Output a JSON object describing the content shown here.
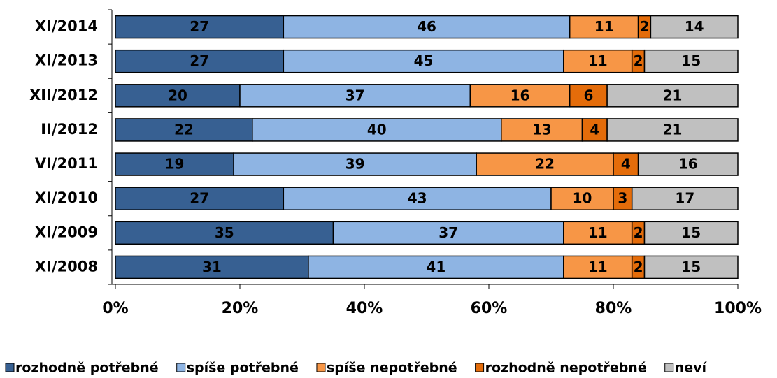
{
  "chart_data": {
    "type": "stacked-barh",
    "categories": [
      "XI/2014",
      "XI/2013",
      "XII/2012",
      "II/2012",
      "VI/2011",
      "XI/2010",
      "XI/2009",
      "XI/2008"
    ],
    "series": [
      {
        "name": "rozhodně potřebné",
        "color": "#376092",
        "values": [
          27,
          27,
          20,
          22,
          19,
          27,
          35,
          31
        ]
      },
      {
        "name": "spíše potřebné",
        "color": "#8eb4e3",
        "values": [
          46,
          45,
          37,
          40,
          39,
          43,
          37,
          41
        ]
      },
      {
        "name": "spíše nepotřebné",
        "color": "#f79646",
        "values": [
          11,
          11,
          16,
          13,
          22,
          10,
          11,
          11
        ]
      },
      {
        "name": "rozhodně nepotřebné",
        "color": "#e46c0a",
        "values": [
          2,
          2,
          6,
          4,
          4,
          3,
          2,
          2
        ]
      },
      {
        "name": "neví",
        "color": "#c0c0c0",
        "values": [
          14,
          15,
          21,
          21,
          16,
          17,
          15,
          15
        ]
      }
    ],
    "xlim": [
      0,
      100
    ],
    "xticks": [
      {
        "value": 0,
        "label": "0%"
      },
      {
        "value": 20,
        "label": "20%"
      },
      {
        "value": 40,
        "label": "40%"
      },
      {
        "value": 60,
        "label": "60%"
      },
      {
        "value": 80,
        "label": "80%"
      },
      {
        "value": 100,
        "label": "100%"
      }
    ],
    "legend": "bottom"
  }
}
